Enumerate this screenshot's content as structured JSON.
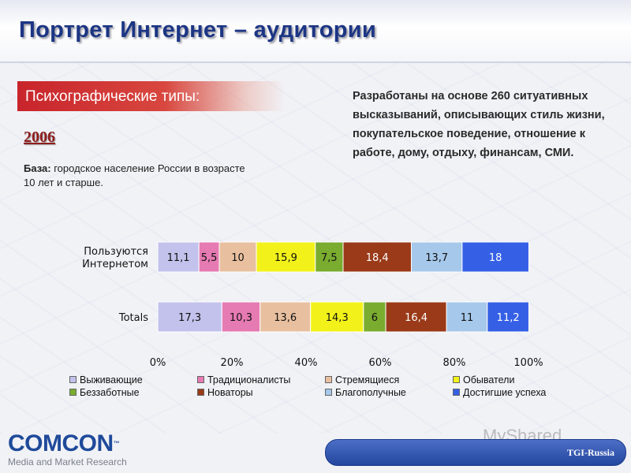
{
  "title": "Портрет Интернет – аудитории",
  "section_label": "Психографические типы:",
  "year": "2006",
  "base": {
    "label": "База:",
    "text": " городское население России в возрасте 10 лет и старше."
  },
  "description": "Разработаны на основе 260 ситуативных высказываний, описывающих стиль жизни, покупательское поведение, отношение к работе, дому, отдыху, финансам, СМИ.",
  "chart_data": {
    "type": "bar",
    "orientation": "horizontal-stacked-100",
    "categories": [
      "Пользуются Интернетом",
      "Totals"
    ],
    "category_lines": [
      [
        "Пользуются",
        "Интернетом"
      ],
      [
        "Totals"
      ]
    ],
    "series": [
      {
        "name": "Выживающие",
        "color": "#c2c2ec",
        "values": [
          11.1,
          17.3
        ],
        "labels": [
          "11,1",
          "17,3"
        ]
      },
      {
        "name": "Традиционалисты",
        "color": "#e67ab2",
        "values": [
          5.5,
          10.3
        ],
        "labels": [
          "5,5",
          "10,3"
        ]
      },
      {
        "name": "Стремящиеся",
        "color": "#e8c0a0",
        "values": [
          10,
          13.6
        ],
        "labels": [
          "10",
          "13,6"
        ]
      },
      {
        "name": "Обыватели",
        "color": "#f2f21a",
        "values": [
          15.9,
          14.3
        ],
        "labels": [
          "15,9",
          "14,3"
        ]
      },
      {
        "name": "Беззаботные",
        "color": "#7aac30",
        "values": [
          7.5,
          6
        ],
        "labels": [
          "7,5",
          "6"
        ]
      },
      {
        "name": "Новаторы",
        "color": "#9a3a18",
        "values": [
          18.4,
          16.4
        ],
        "labels": [
          "18,4",
          "16,4"
        ]
      },
      {
        "name": "Благополучные",
        "color": "#a6c8ea",
        "values": [
          13.7,
          11
        ],
        "labels": [
          "13,7",
          "11"
        ]
      },
      {
        "name": "Достигшие успеха",
        "color": "#3560e6",
        "values": [
          18,
          11.2
        ],
        "labels": [
          "18",
          "11,2"
        ]
      }
    ],
    "xlim": [
      0,
      100
    ],
    "x_ticks": [
      "0%",
      "20%",
      "40%",
      "60%",
      "80%",
      "100%"
    ],
    "grid": false,
    "legend_position": "bottom"
  },
  "footer": {
    "logo": "COMCON",
    "logo_tm": "™",
    "logo_subtitle": "Media and Market Research",
    "pill_label": "TGI-Russia",
    "watermark": "MyShared"
  }
}
